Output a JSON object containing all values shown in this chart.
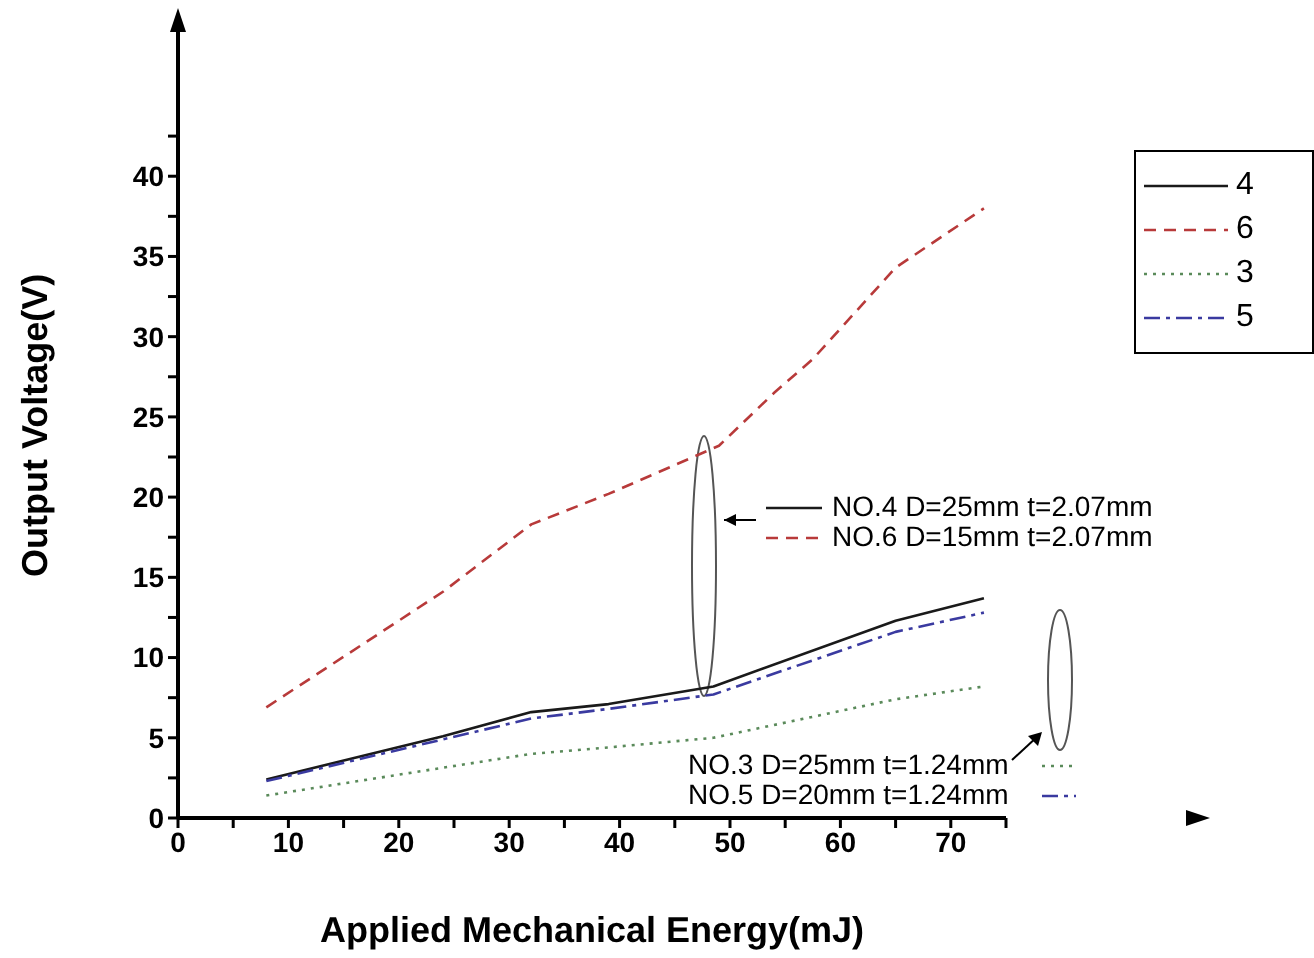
{
  "chart_data": {
    "type": "line",
    "xlabel": "Applied Mechanical Energy(mJ)",
    "ylabel": "Output Voltage(V)",
    "xlim": [
      0,
      75
    ],
    "xticks": [
      0,
      {
        "value": 5,
        "label": null
      },
      10,
      {
        "value": 15,
        "label": null
      },
      20,
      {
        "value": 25,
        "label": null
      },
      30,
      {
        "value": 35,
        "label": null
      },
      40,
      {
        "value": 45,
        "label": null
      },
      50,
      {
        "value": 55,
        "label": null
      },
      60,
      {
        "value": 65,
        "label": null
      },
      70,
      {
        "value": 75,
        "label": null
      }
    ],
    "ylim": [
      0,
      45
    ],
    "yticks": [
      0,
      {
        "value": 2.5,
        "label": null
      },
      5,
      {
        "value": 7.5,
        "label": null
      },
      10,
      {
        "value": 12.5,
        "label": null
      },
      15,
      {
        "value": 17.5,
        "label": null
      },
      20,
      {
        "value": 22.5,
        "label": null
      },
      25,
      {
        "value": 27.5,
        "label": null
      },
      30,
      {
        "value": 32.5,
        "label": null
      },
      35,
      {
        "value": 37.5,
        "label": null
      },
      40,
      {
        "value": 42.5,
        "label": null
      }
    ],
    "legend": "right",
    "marker": "none",
    "series": [
      {
        "name": "4",
        "color": "#1a1a1a",
        "line_style": "solid",
        "x": [
          8,
          24,
          32,
          39,
          48.5,
          65,
          73
        ],
        "values": [
          2.4,
          5.1,
          6.6,
          7.1,
          8.2,
          12.3,
          13.7
        ]
      },
      {
        "name": "6",
        "color": "#b83a3a",
        "line_style": "dashed",
        "x": [
          8,
          24,
          32,
          39,
          49,
          54,
          57.5,
          65,
          73
        ],
        "values": [
          6.9,
          14.1,
          18.3,
          20.2,
          23.2,
          26.5,
          28.6,
          34.3,
          38.0
        ]
      },
      {
        "name": "3",
        "color": "#5a8a5a",
        "line_style": "dotted",
        "x": [
          8,
          32,
          39,
          48.5,
          65,
          73
        ],
        "values": [
          1.4,
          4.0,
          4.4,
          5.0,
          7.4,
          8.2
        ]
      },
      {
        "name": "5",
        "color": "#3a3aa0",
        "line_style": "dashdot",
        "x": [
          8,
          24,
          32,
          39,
          48.5,
          65,
          73
        ],
        "values": [
          2.3,
          4.9,
          6.2,
          6.8,
          7.7,
          11.6,
          12.8
        ]
      }
    ],
    "annotations": [
      "NO.4 D=25mm t=2.07mm",
      "NO.6 D=15mm t=2.07mm",
      "NO.3 D=25mm t=1.24mm",
      "NO.5 D=20mm t=1.24mm"
    ]
  }
}
